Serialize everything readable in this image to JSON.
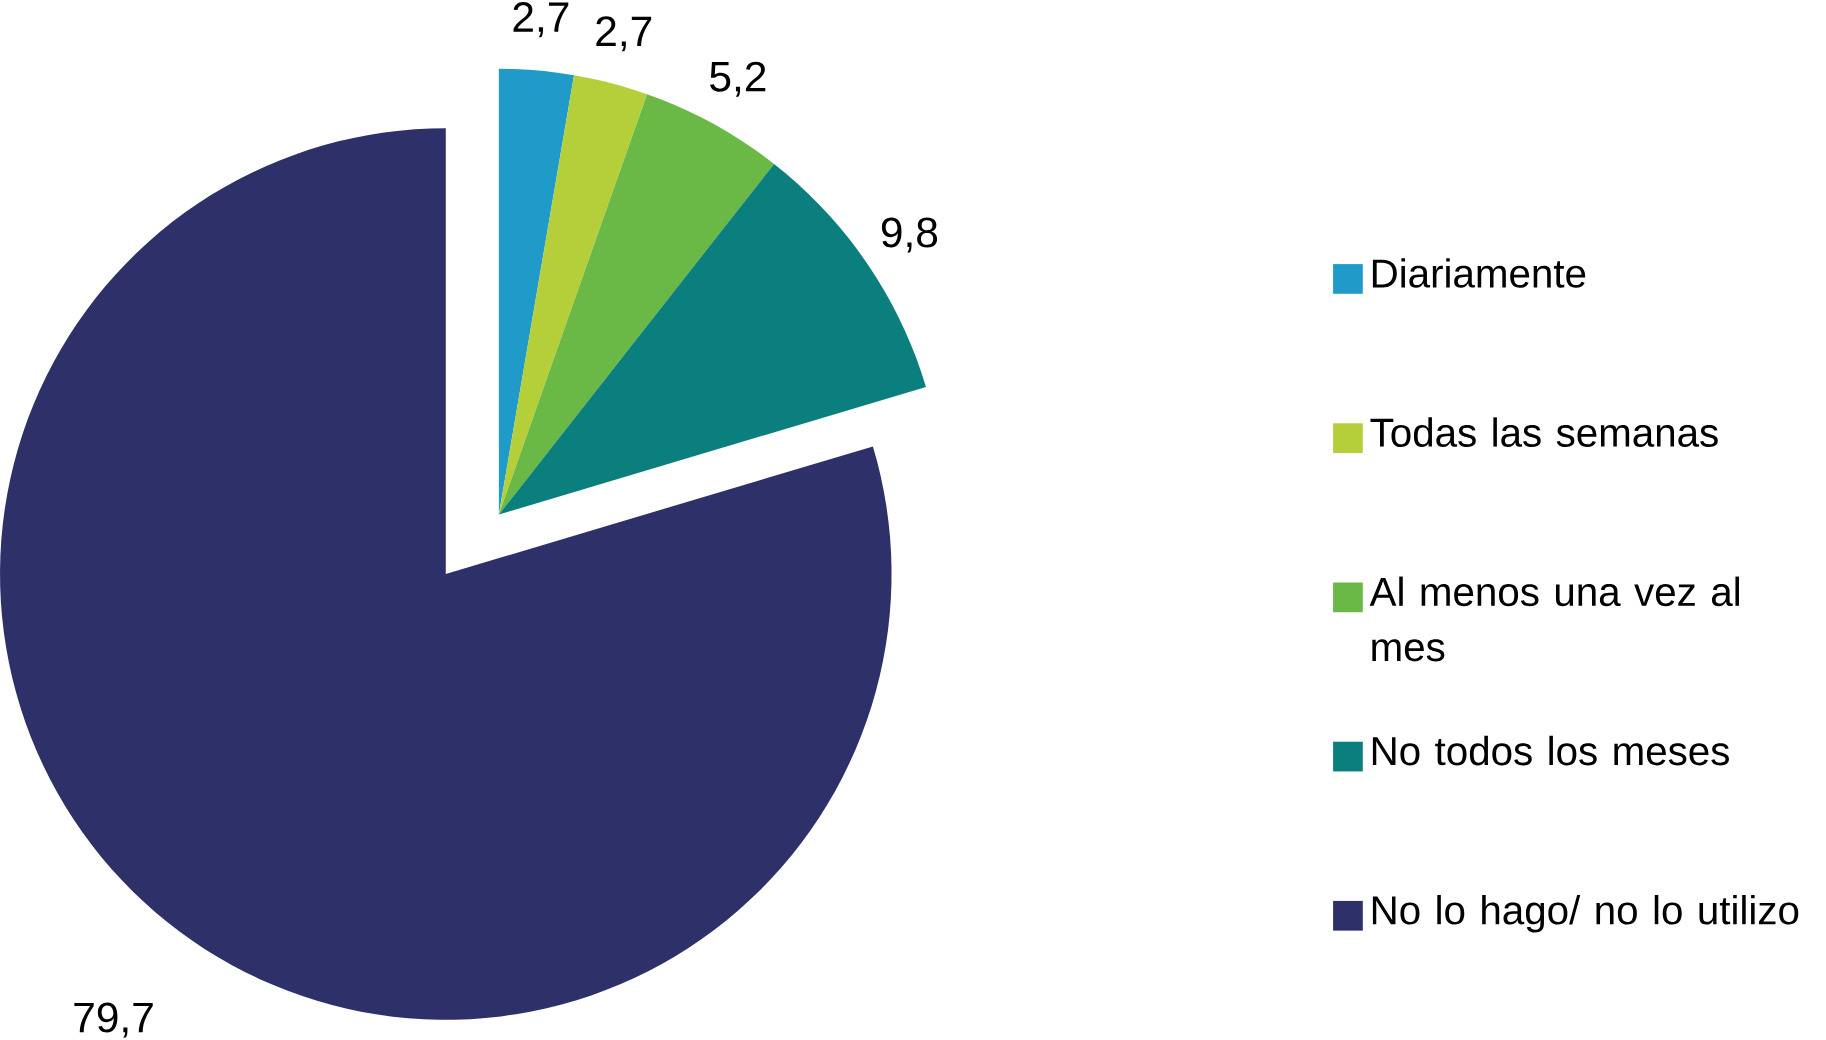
{
  "chart_data": {
    "type": "pie",
    "categories": [
      "Diariamente",
      "Todas las semanas",
      "Al menos una vez al mes",
      "No todos los meses",
      "No lo hago/ no lo utilizo"
    ],
    "values": [
      2.7,
      2.7,
      5.2,
      9.8,
      79.7
    ],
    "value_labels": [
      "2,7",
      "2,7",
      "5,2",
      "9,8",
      "79,7"
    ],
    "colors": [
      "#1f9ac9",
      "#b5cf3a",
      "#6ab845",
      "#0a7f7d",
      "#2e3169"
    ],
    "legend": "right"
  }
}
